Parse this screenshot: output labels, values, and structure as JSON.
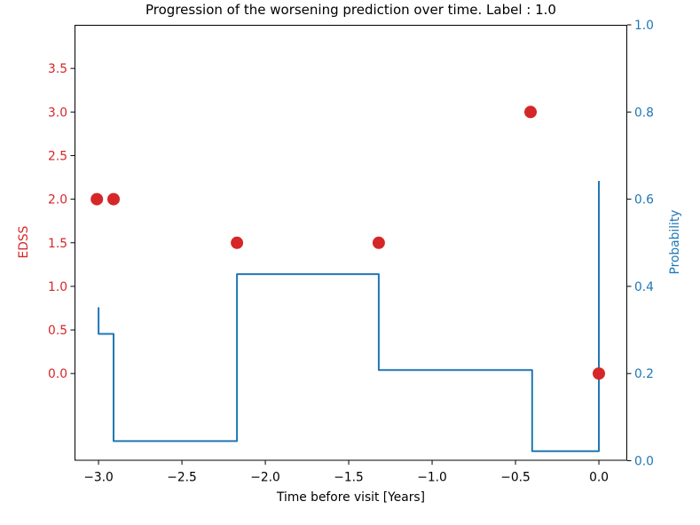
{
  "chart_data": {
    "type": "line",
    "title": "Progression of the worsening prediction over time. Label : 1.0",
    "grid": false,
    "legend": "none",
    "axes": {
      "x": {
        "label": "Time before visit [Years]",
        "lim": [
          -3.144,
          0.17
        ],
        "ticks": [
          -3.0,
          -2.5,
          -2.0,
          -1.5,
          -1.0,
          -0.5,
          0.0
        ],
        "tick_labels": [
          "−3.0",
          "−2.5",
          "−2.0",
          "−1.5",
          "−1.0",
          "−0.5",
          "0.0"
        ],
        "color": "#000000"
      },
      "y_left": {
        "label": "EDSS",
        "lim": [
          -1.0,
          4.0
        ],
        "ticks": [
          0.0,
          0.5,
          1.0,
          1.5,
          2.0,
          2.5,
          3.0,
          3.5
        ],
        "tick_labels": [
          "0.0",
          "0.5",
          "1.0",
          "1.5",
          "2.0",
          "2.5",
          "3.0",
          "3.5"
        ],
        "color": "#d62728"
      },
      "y_right": {
        "label": "Probability",
        "lim": [
          0.0,
          1.0
        ],
        "ticks": [
          0.0,
          0.2,
          0.4,
          0.6,
          0.8,
          1.0
        ],
        "tick_labels": [
          "0.0",
          "0.2",
          "0.4",
          "0.6",
          "0.8",
          "1.0"
        ],
        "color": "#1f77b4"
      }
    },
    "series": [
      {
        "name": "worsening-probability-step",
        "type": "step-line",
        "axis": "y_right",
        "color": "#1f77b4",
        "line_width": 2,
        "points": [
          [
            -3.0,
            0.352
          ],
          [
            -3.0,
            0.291
          ],
          [
            -2.91,
            0.291
          ],
          [
            -2.91,
            0.045
          ],
          [
            -2.17,
            0.045
          ],
          [
            -2.17,
            0.428
          ],
          [
            -1.32,
            0.428
          ],
          [
            -1.32,
            0.208
          ],
          [
            -0.4,
            0.208
          ],
          [
            -0.4,
            0.022
          ],
          [
            0.0,
            0.022
          ],
          [
            0.0,
            0.642
          ]
        ]
      },
      {
        "name": "edss-visits-scatter",
        "type": "scatter",
        "axis": "y_left",
        "color": "#d62728",
        "marker_radius": 7,
        "points": [
          [
            -3.01,
            2.0
          ],
          [
            -2.91,
            2.0
          ],
          [
            -2.17,
            1.5
          ],
          [
            -1.32,
            1.5
          ],
          [
            -0.41,
            3.0
          ],
          [
            0.0,
            0.0
          ]
        ]
      }
    ]
  }
}
